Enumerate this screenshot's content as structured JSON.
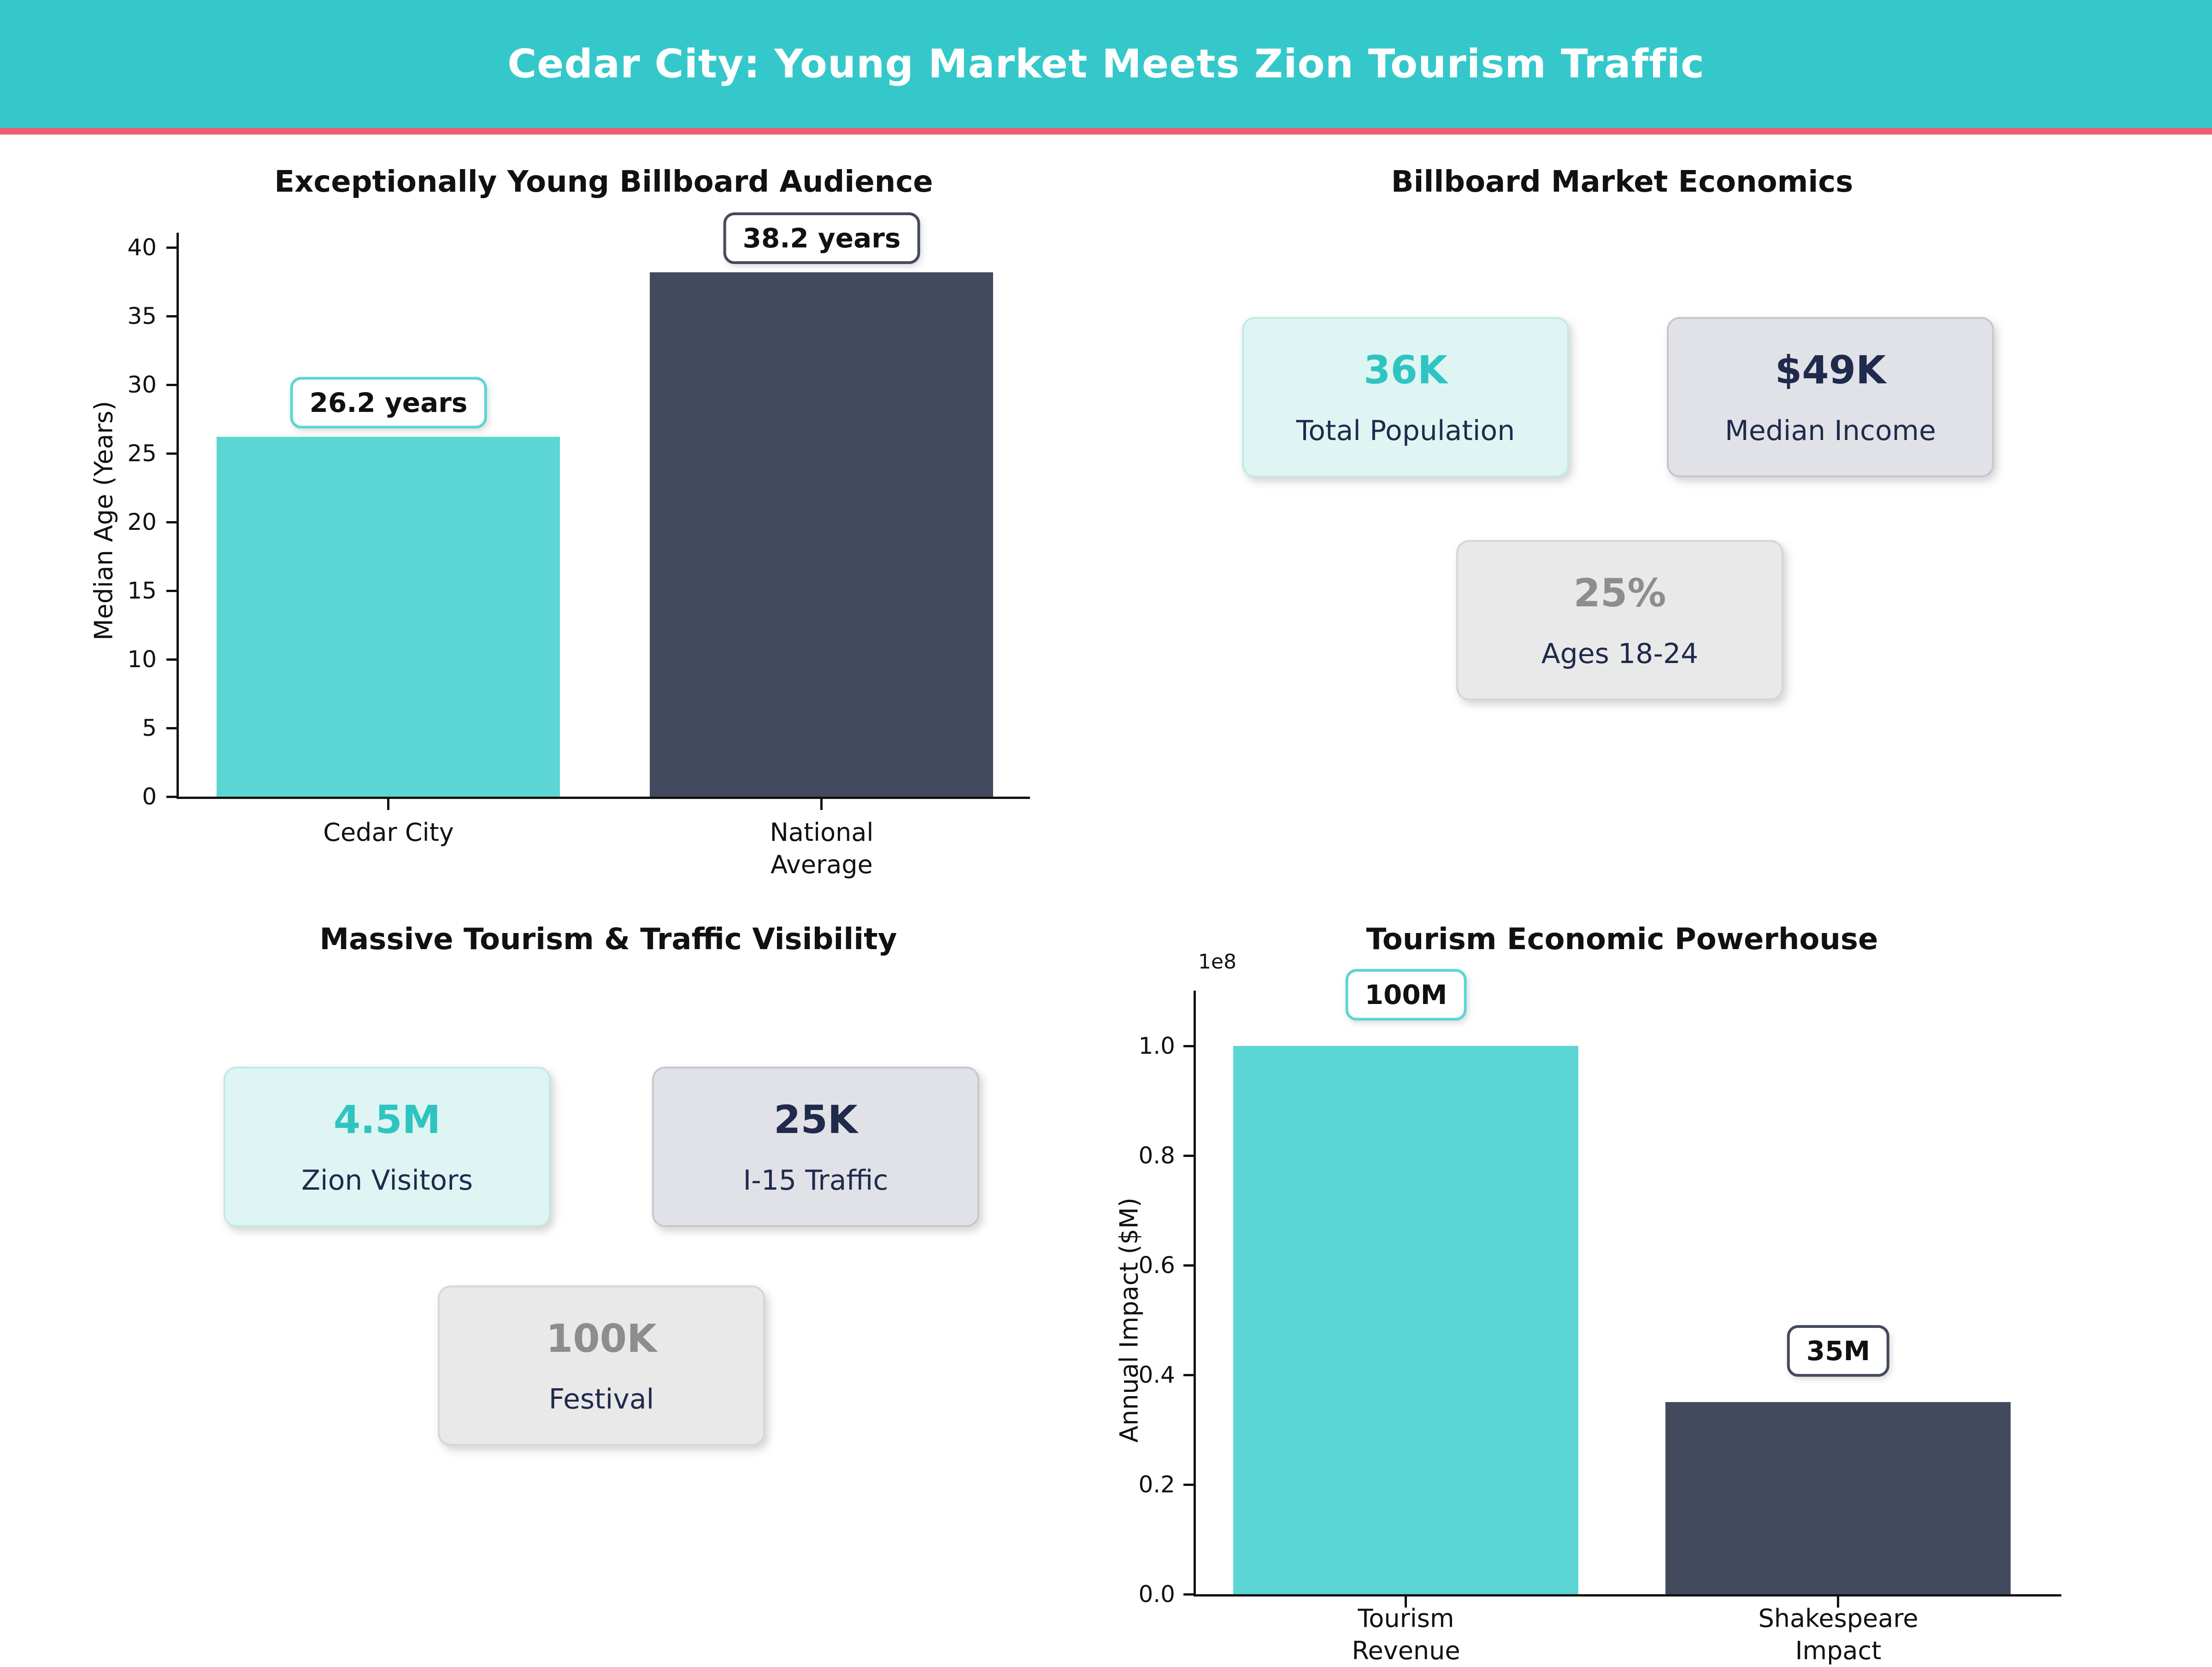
{
  "header": {
    "title": "Cedar City: Young Market Meets Zion Tourism Traffic"
  },
  "colors": {
    "header_bg": "#35c8cb",
    "divider": "#ed5c72",
    "teal_bar": "#5cd6d4",
    "navy_bar": "#444a5e",
    "teal_text": "#2fc4c2",
    "navy_text": "#1f2a4d",
    "gray_text": "#8d8d8d"
  },
  "charts": {
    "age": {
      "title": "Exceptionally Young Billboard Audience",
      "ylabel": "Median Age (Years)",
      "yticks": [
        "40",
        "35",
        "30",
        "25",
        "20",
        "15",
        "10",
        "5",
        "0"
      ],
      "bars": [
        {
          "label": "Cedar City",
          "annotation": "26.2 years"
        },
        {
          "label": "National\nAverage",
          "annotation": "38.2 years"
        }
      ]
    },
    "impact": {
      "title": "Tourism Economic Powerhouse",
      "ylabel": "Annual Impact ($M)",
      "offset_text": "1e8",
      "yticks": [
        "1.0",
        "0.8",
        "0.6",
        "0.4",
        "0.2",
        "0.0"
      ],
      "bars": [
        {
          "label": "Tourism\nRevenue",
          "annotation": "100M"
        },
        {
          "label": "Shakespeare\nImpact",
          "annotation": "35M"
        }
      ]
    }
  },
  "panels": {
    "economics": {
      "title": "Billboard Market Economics",
      "cards": [
        {
          "value": "36K",
          "label": "Total Population"
        },
        {
          "value": "$49K",
          "label": "Median Income"
        },
        {
          "value": "25%",
          "label": "Ages 18-24"
        }
      ]
    },
    "tourism": {
      "title": "Massive Tourism & Traffic Visibility",
      "cards": [
        {
          "value": "4.5M",
          "label": "Zion Visitors"
        },
        {
          "value": "25K",
          "label": "I-15 Traffic"
        },
        {
          "value": "100K",
          "label": "Festival"
        }
      ]
    }
  },
  "chart_data": [
    {
      "type": "bar",
      "title": "Exceptionally Young Billboard Audience",
      "categories": [
        "Cedar City",
        "National Average"
      ],
      "values": [
        26.2,
        38.2
      ],
      "bar_colors": [
        "#5cd6d4",
        "#444a5e"
      ],
      "annotations": [
        "26.2 years",
        "38.2 years"
      ],
      "xlabel": "",
      "ylabel": "Median Age (Years)",
      "ylim": [
        0,
        41
      ],
      "yticks": [
        0,
        5,
        10,
        15,
        20,
        25,
        30,
        35,
        40
      ],
      "grid": false,
      "legend": "none"
    },
    {
      "type": "bar",
      "title": "Tourism Economic Powerhouse",
      "categories": [
        "Tourism Revenue",
        "Shakespeare Impact"
      ],
      "values": [
        100000000,
        35000000
      ],
      "bar_colors": [
        "#5cd6d4",
        "#444a5e"
      ],
      "annotations": [
        "100M",
        "35M"
      ],
      "xlabel": "",
      "ylabel": "Annual Impact ($M)",
      "ylim": [
        0,
        110000000
      ],
      "yticks": [
        0.0,
        20000000.0,
        40000000.0,
        60000000.0,
        80000000.0,
        100000000.0
      ],
      "offset_text": "1e8",
      "grid": false,
      "legend": "none"
    },
    {
      "type": "table",
      "title": "Billboard Market Economics",
      "rows": [
        [
          "36K",
          "Total Population"
        ],
        [
          "$49K",
          "Median Income"
        ],
        [
          "25%",
          "Ages 18-24"
        ]
      ]
    },
    {
      "type": "table",
      "title": "Massive Tourism & Traffic Visibility",
      "rows": [
        [
          "4.5M",
          "Zion Visitors"
        ],
        [
          "25K",
          "I-15 Traffic"
        ],
        [
          "100K",
          "Festival"
        ]
      ]
    }
  ]
}
